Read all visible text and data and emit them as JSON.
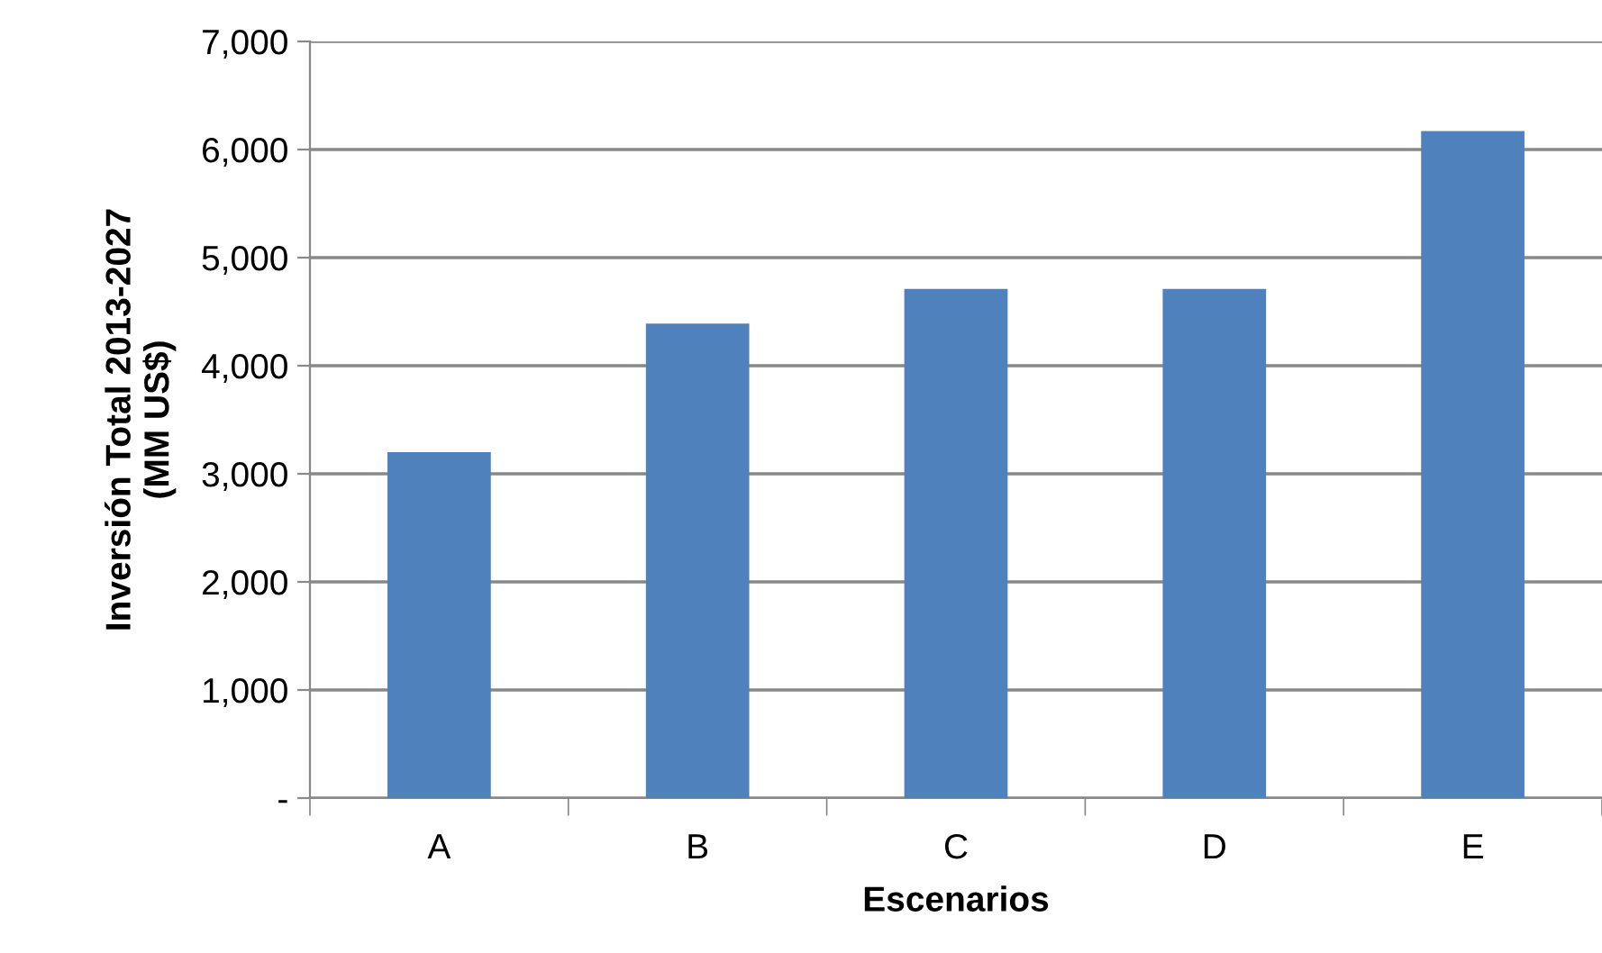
{
  "chart_data": {
    "type": "bar",
    "xlabel": "Escenarios",
    "ylabel": "Inversión Total 2013-2027\n(MM US$)",
    "categories": [
      "A",
      "B",
      "C",
      "D",
      "E"
    ],
    "values": [
      3200,
      4390,
      4710,
      4710,
      6170
    ],
    "color": "#4f81bd",
    "ylim": [
      0,
      7000
    ],
    "yticks": [
      {
        "value": 0,
        "label": "-"
      },
      {
        "value": 1000,
        "label": "1,000"
      },
      {
        "value": 2000,
        "label": "2,000"
      },
      {
        "value": 3000,
        "label": "3,000"
      },
      {
        "value": 4000,
        "label": "4,000"
      },
      {
        "value": 5000,
        "label": "5,000"
      },
      {
        "value": 6000,
        "label": "6,000"
      },
      {
        "value": 7000,
        "label": "7,000"
      }
    ],
    "grid": "y",
    "legend": false
  }
}
